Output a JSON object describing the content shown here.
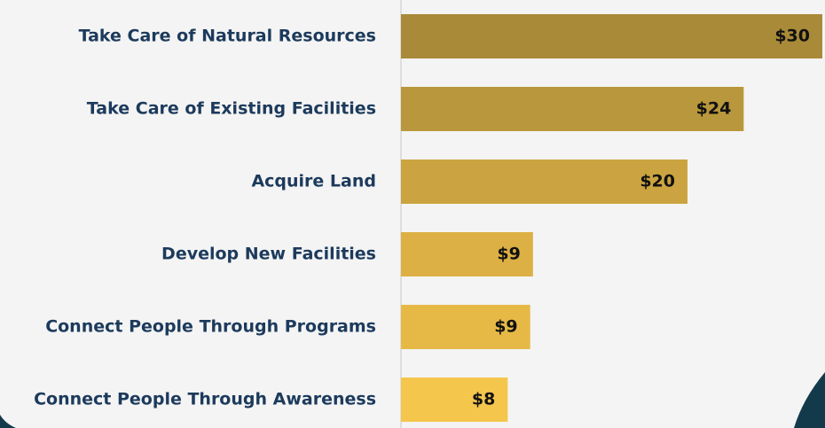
{
  "chart_data": {
    "type": "hbar",
    "categories": [
      "Take Care of Natural Resources",
      "Take Care of Existing Facilities",
      "Acquire Land",
      "Develop New Facilities",
      "Connect People Through Programs",
      "Connect People Through Awareness"
    ],
    "values": [
      30,
      24.4,
      20.4,
      9.4,
      9.2,
      7.6
    ],
    "value_labels": [
      "$30",
      "$24",
      "$20",
      "$9",
      "$9",
      "$8"
    ],
    "colors": [
      "#a98a38",
      "#b9973c",
      "#cba441",
      "#dcb044",
      "#e6b947",
      "#f5c64c"
    ],
    "xlim": [
      0,
      30
    ]
  }
}
